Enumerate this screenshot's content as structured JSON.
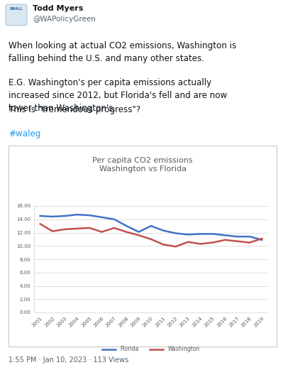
{
  "tweet": {
    "avatar_text": "SMALL",
    "name": "Todd Myers",
    "handle": "@WAPolicyGreen",
    "body": [
      "When looking at actual CO2 emissions, Washington is\nfalling behind the U.S. and many other states.",
      "E.G. Washington's per capita emissions actually\nincreased since 2012, but Florida's fell and are now\nlower than Washington's.",
      "This is \"tremendous progress\"?",
      "#waleg"
    ],
    "footer": "1:55 PM · Jan 10, 2023 · 113 Views"
  },
  "chart_data": {
    "type": "line",
    "title": "Per capita CO2 emissions\nWashington vs Florida",
    "categories": [
      "2001",
      "2002",
      "2003",
      "2004",
      "2005",
      "2006",
      "2007",
      "2008",
      "2009",
      "2010",
      "2011",
      "2012",
      "2013",
      "2014",
      "2015",
      "2016",
      "2017",
      "2018",
      "2019"
    ],
    "series": [
      {
        "name": "Florida",
        "color": "#4472c4",
        "values": [
          14.5,
          14.4,
          14.5,
          14.7,
          14.6,
          14.3,
          14.0,
          13.0,
          12.1,
          13.0,
          12.3,
          11.9,
          11.7,
          11.8,
          11.8,
          11.6,
          11.4,
          11.4,
          10.9
        ]
      },
      {
        "name": "Washington",
        "color": "#c0504d",
        "values": [
          13.3,
          12.2,
          12.5,
          12.6,
          12.7,
          12.1,
          12.7,
          12.1,
          11.6,
          11.0,
          10.2,
          9.9,
          10.6,
          10.3,
          10.5,
          10.9,
          10.7,
          10.5,
          11.1
        ]
      }
    ],
    "ylim": [
      0,
      16
    ],
    "yticks": [
      {
        "value": 0,
        "label": "0.00"
      },
      {
        "value": 2,
        "label": "2.00"
      },
      {
        "value": 4,
        "label": "4.00"
      },
      {
        "value": 6,
        "label": "6.00"
      },
      {
        "value": 8,
        "label": "8.00"
      },
      {
        "value": 10,
        "label": "10.00"
      },
      {
        "value": 12,
        "label": "12.00"
      },
      {
        "value": 14,
        "label": "14.00"
      },
      {
        "value": 16,
        "label": "16.00"
      }
    ],
    "grid": true,
    "legend": "lower center"
  }
}
